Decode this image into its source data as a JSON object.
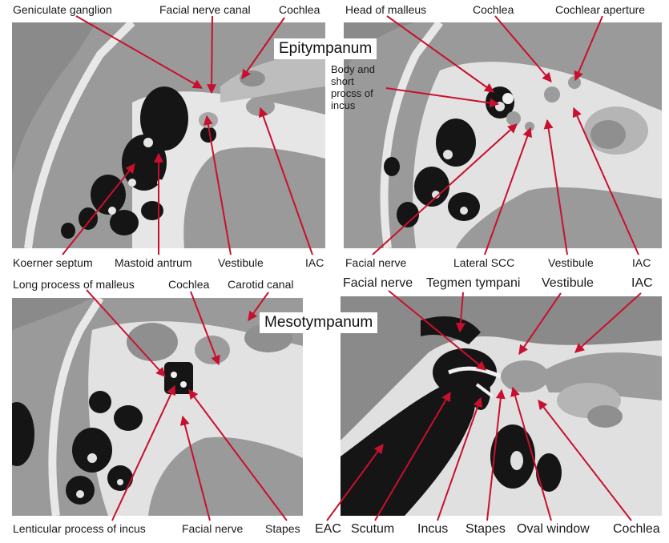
{
  "colors": {
    "arrow": "#c8102e",
    "ct_background": "#8a8a8a",
    "bone": "#e6e6e6",
    "air": "#151515",
    "soft_tissue": "#9c9c9c"
  },
  "sections": {
    "epitympanum": "Epitympanum",
    "mesotympanum": "Mesotympanum"
  },
  "panels": {
    "top_left": {
      "labels": {
        "geniculate_ganglion": "Geniculate ganglion",
        "facial_nerve_canal": "Facial nerve canal",
        "cochlea": "Cochlea",
        "koerner_septum": "Koerner septum",
        "mastoid_antrum": "Mastoid antrum",
        "vestibule": "Vestibule",
        "iac": "IAC"
      }
    },
    "top_right": {
      "labels": {
        "head_of_malleus": "Head of malleus",
        "cochlea": "Cochlea",
        "cochlear_aperture": "Cochlear aperture",
        "body_short_process_incus": "Body and short procss of incus",
        "facial_nerve": "Facial nerve",
        "lateral_scc": "Lateral SCC",
        "vestibule": "Vestibule",
        "iac": "IAC"
      }
    },
    "bottom_left": {
      "labels": {
        "long_process_malleus": "Long process of malleus",
        "cochlea": "Cochlea",
        "carotid_canal": "Carotid canal",
        "lenticular_process_incus": "Lenticular process of incus",
        "facial_nerve": "Facial nerve",
        "stapes": "Stapes"
      }
    },
    "bottom_right": {
      "labels": {
        "facial_nerve": "Facial nerve",
        "tegmen_tympani": "Tegmen tympani",
        "vestibule": "Vestibule",
        "iac": "IAC",
        "eac": "EAC",
        "scutum": "Scutum",
        "incus": "Incus",
        "stapes": "Stapes",
        "oval_window": "Oval window",
        "cochlea": "Cochlea"
      }
    }
  }
}
